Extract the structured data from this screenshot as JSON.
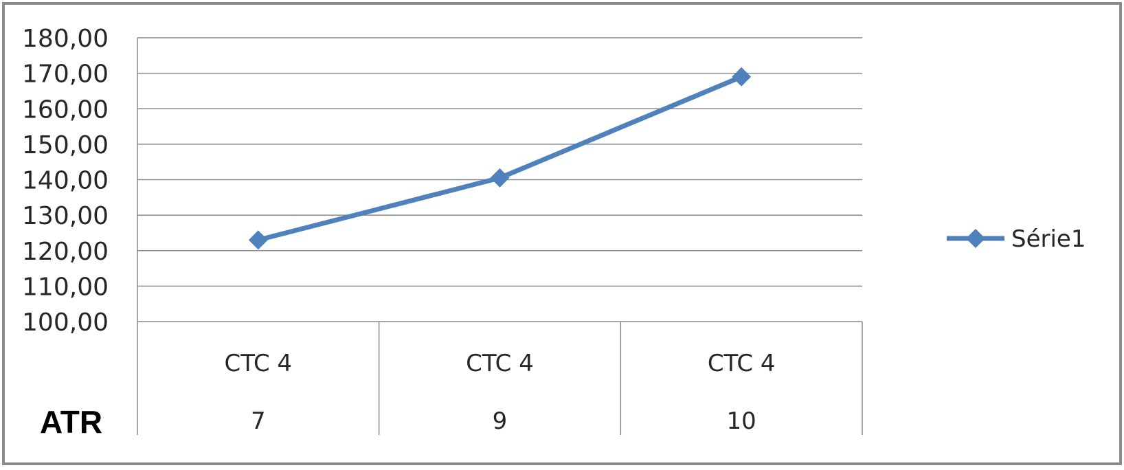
{
  "chart_data": {
    "type": "line",
    "categories": [
      [
        "CTC 4",
        "7"
      ],
      [
        "CTC 4",
        "9"
      ],
      [
        "CTC 4",
        "10"
      ]
    ],
    "series": [
      {
        "name": "Série1",
        "values": [
          123,
          140.5,
          169
        ],
        "color": "#4f81bd",
        "marker": "diamond"
      }
    ],
    "y_ticks": [
      "100,00",
      "110,00",
      "120,00",
      "130,00",
      "140,00",
      "150,00",
      "160,00",
      "170,00",
      "180,00"
    ],
    "ylim": [
      100,
      180
    ],
    "y_step": 10,
    "grid": true,
    "legend_position": "right",
    "corner_label": "ATR"
  }
}
